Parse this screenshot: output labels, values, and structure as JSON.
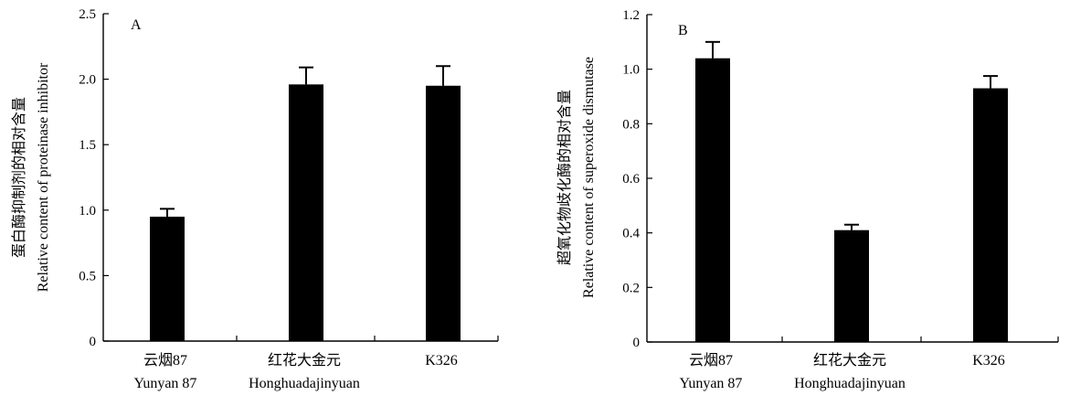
{
  "chart_data": [
    {
      "type": "bar",
      "panel": "A",
      "categories": [
        {
          "zh": "云烟87",
          "en": "Yunyan 87"
        },
        {
          "zh": "红花大金元",
          "en": "Honghuadajinyuan"
        },
        {
          "zh": "K326",
          "en": ""
        }
      ],
      "values": [
        0.95,
        1.96,
        1.95
      ],
      "errors": [
        0.06,
        0.13,
        0.15
      ],
      "ylabel_zh": "蛋白酶抑制剂的相对含量",
      "ylabel_en": "Relative content of  proteinase inhibitor",
      "ylim": [
        0,
        2.5
      ],
      "yticks": [
        "0",
        "0.5",
        "1.0",
        "1.5",
        "2.0",
        "2.5"
      ],
      "bar_color": "#000000"
    },
    {
      "type": "bar",
      "panel": "B",
      "categories": [
        {
          "zh": "云烟87",
          "en": "Yunyan 87"
        },
        {
          "zh": "红花大金元",
          "en": "Honghuadajinyuan"
        },
        {
          "zh": "K326",
          "en": ""
        }
      ],
      "values": [
        1.04,
        0.41,
        0.93
      ],
      "errors": [
        0.06,
        0.02,
        0.045
      ],
      "ylabel_zh": "超氧化物歧化酶的相对含量",
      "ylabel_en": "Relative content of superoxide dismutase",
      "ylim": [
        0,
        1.2
      ],
      "yticks": [
        "0",
        "0.2",
        "0.4",
        "0.6",
        "0.8",
        "1.0",
        "1.2"
      ],
      "bar_color": "#000000"
    }
  ]
}
